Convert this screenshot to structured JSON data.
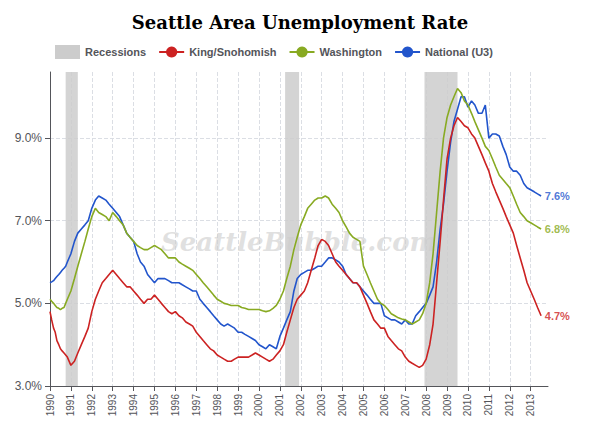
{
  "chart_data": {
    "type": "line",
    "title": "Seattle Area Unemployment Rate",
    "watermark": "SeattleBubble.com",
    "x": [
      1990.0,
      1990.08,
      1990.17,
      1990.25,
      1990.33,
      1990.42,
      1990.5,
      1990.58,
      1990.67,
      1990.75,
      1990.83,
      1991.0,
      1991.17,
      1991.33,
      1991.5,
      1991.67,
      1991.83,
      1992.0,
      1992.17,
      1992.33,
      1992.5,
      1992.67,
      1992.83,
      1993.0,
      1993.17,
      1993.33,
      1993.5,
      1993.67,
      1993.83,
      1994.0,
      1994.17,
      1994.33,
      1994.5,
      1994.67,
      1994.83,
      1995.0,
      1995.17,
      1995.33,
      1995.5,
      1995.67,
      1995.83,
      1996.0,
      1996.17,
      1996.33,
      1996.5,
      1996.67,
      1996.83,
      1997.0,
      1997.17,
      1997.33,
      1997.5,
      1997.67,
      1997.83,
      1998.0,
      1998.17,
      1998.33,
      1998.5,
      1998.67,
      1998.83,
      1999.0,
      1999.17,
      1999.33,
      1999.5,
      1999.67,
      1999.83,
      2000.0,
      2000.17,
      2000.33,
      2000.5,
      2000.67,
      2000.83,
      2001.0,
      2001.17,
      2001.33,
      2001.5,
      2001.67,
      2001.83,
      2002.0,
      2002.17,
      2002.33,
      2002.5,
      2002.67,
      2002.83,
      2003.0,
      2003.17,
      2003.33,
      2003.5,
      2003.67,
      2003.83,
      2004.0,
      2004.17,
      2004.33,
      2004.5,
      2004.67,
      2004.83,
      2005.0,
      2005.17,
      2005.33,
      2005.5,
      2005.67,
      2005.83,
      2006.0,
      2006.17,
      2006.33,
      2006.5,
      2006.67,
      2006.83,
      2007.0,
      2007.17,
      2007.33,
      2007.5,
      2007.67,
      2007.83,
      2008.0,
      2008.17,
      2008.33,
      2008.5,
      2008.67,
      2008.83,
      2009.0,
      2009.17,
      2009.33,
      2009.5,
      2009.67,
      2009.83,
      2010.0,
      2010.17,
      2010.33,
      2010.5,
      2010.67,
      2010.83,
      2011.0,
      2011.17,
      2011.33,
      2011.5,
      2011.67,
      2011.83,
      2012.0,
      2012.17,
      2012.33,
      2012.5,
      2012.67,
      2012.83,
      2013.0,
      2013.17,
      2013.33,
      2013.5
    ],
    "series": [
      {
        "name": "King/Snohomish",
        "color": "#cc2222",
        "values": [
          4.8,
          4.6,
          4.4,
          4.3,
          4.1,
          4.0,
          3.9,
          3.85,
          3.8,
          3.75,
          3.7,
          3.5,
          3.6,
          3.8,
          4.0,
          4.2,
          4.4,
          4.8,
          5.1,
          5.3,
          5.5,
          5.6,
          5.7,
          5.8,
          5.7,
          5.6,
          5.5,
          5.4,
          5.4,
          5.3,
          5.2,
          5.1,
          5.0,
          5.1,
          5.1,
          5.2,
          5.1,
          5.0,
          4.9,
          4.8,
          4.75,
          4.8,
          4.7,
          4.65,
          4.55,
          4.5,
          4.45,
          4.3,
          4.2,
          4.1,
          4.0,
          3.9,
          3.85,
          3.75,
          3.7,
          3.65,
          3.6,
          3.6,
          3.65,
          3.7,
          3.7,
          3.7,
          3.7,
          3.75,
          3.8,
          3.75,
          3.7,
          3.65,
          3.6,
          3.65,
          3.75,
          3.85,
          4.0,
          4.3,
          4.6,
          4.9,
          5.1,
          5.2,
          5.3,
          5.5,
          5.8,
          6.1,
          6.4,
          6.55,
          6.5,
          6.4,
          6.2,
          6.0,
          5.9,
          5.8,
          5.7,
          5.6,
          5.5,
          5.5,
          5.4,
          5.2,
          5.0,
          4.8,
          4.6,
          4.5,
          4.4,
          4.4,
          4.2,
          4.1,
          4.0,
          3.9,
          3.85,
          3.7,
          3.6,
          3.55,
          3.5,
          3.45,
          3.5,
          3.65,
          4.0,
          4.5,
          5.5,
          6.5,
          7.5,
          8.5,
          9.0,
          9.3,
          9.5,
          9.4,
          9.3,
          9.25,
          9.1,
          9.0,
          8.8,
          8.6,
          8.4,
          8.2,
          7.9,
          7.7,
          7.5,
          7.3,
          7.1,
          6.9,
          6.7,
          6.4,
          6.1,
          5.8,
          5.5,
          5.3,
          5.1,
          4.9,
          4.7
        ]
      },
      {
        "name": "Washington",
        "color": "#88aa22",
        "values": [
          5.1,
          5.05,
          5.0,
          4.95,
          4.9,
          4.88,
          4.85,
          4.88,
          4.9,
          5.0,
          5.1,
          5.3,
          5.6,
          5.9,
          6.2,
          6.5,
          6.8,
          7.1,
          7.3,
          7.2,
          7.15,
          7.1,
          7.0,
          7.2,
          7.1,
          7.0,
          6.9,
          6.7,
          6.6,
          6.5,
          6.4,
          6.35,
          6.3,
          6.3,
          6.35,
          6.4,
          6.35,
          6.3,
          6.2,
          6.1,
          6.1,
          6.1,
          6.0,
          5.95,
          5.9,
          5.85,
          5.8,
          5.7,
          5.6,
          5.5,
          5.4,
          5.3,
          5.2,
          5.1,
          5.05,
          5.0,
          4.98,
          4.95,
          4.95,
          4.95,
          4.9,
          4.88,
          4.85,
          4.85,
          4.85,
          4.85,
          4.82,
          4.8,
          4.82,
          4.88,
          4.95,
          5.1,
          5.3,
          5.6,
          5.9,
          6.3,
          6.6,
          6.9,
          7.1,
          7.3,
          7.4,
          7.5,
          7.55,
          7.55,
          7.6,
          7.55,
          7.4,
          7.3,
          7.2,
          7.0,
          6.85,
          6.7,
          6.6,
          6.55,
          6.5,
          5.9,
          5.7,
          5.5,
          5.3,
          5.1,
          5.0,
          4.95,
          4.85,
          4.75,
          4.7,
          4.65,
          4.62,
          4.6,
          4.55,
          4.5,
          4.55,
          4.6,
          4.75,
          5.0,
          5.5,
          6.2,
          7.2,
          8.2,
          9.0,
          9.5,
          9.8,
          10.0,
          10.2,
          10.1,
          9.9,
          9.8,
          9.6,
          9.4,
          9.2,
          9.0,
          8.8,
          8.7,
          8.5,
          8.3,
          8.1,
          8.0,
          7.9,
          7.8,
          7.6,
          7.4,
          7.2,
          7.1,
          7.0,
          6.95,
          6.9,
          6.85,
          6.8
        ]
      },
      {
        "name": "National (U3)",
        "color": "#2255cc",
        "values": [
          5.5,
          5.52,
          5.55,
          5.6,
          5.65,
          5.7,
          5.75,
          5.8,
          5.85,
          5.9,
          6.0,
          6.2,
          6.5,
          6.7,
          6.8,
          6.9,
          7.0,
          7.3,
          7.5,
          7.6,
          7.55,
          7.5,
          7.4,
          7.3,
          7.2,
          7.1,
          6.9,
          6.7,
          6.6,
          6.5,
          6.2,
          6.0,
          5.9,
          5.7,
          5.6,
          5.5,
          5.6,
          5.6,
          5.6,
          5.55,
          5.5,
          5.5,
          5.5,
          5.45,
          5.4,
          5.35,
          5.3,
          5.3,
          5.1,
          5.0,
          4.9,
          4.8,
          4.7,
          4.6,
          4.5,
          4.45,
          4.5,
          4.45,
          4.4,
          4.3,
          4.3,
          4.25,
          4.2,
          4.15,
          4.1,
          4.0,
          3.95,
          3.9,
          4.0,
          3.95,
          3.9,
          4.2,
          4.4,
          4.6,
          4.8,
          5.3,
          5.6,
          5.7,
          5.75,
          5.8,
          5.8,
          5.85,
          5.9,
          5.9,
          6.0,
          6.1,
          6.1,
          6.05,
          6.0,
          5.9,
          5.7,
          5.6,
          5.5,
          5.5,
          5.4,
          5.3,
          5.2,
          5.1,
          5.0,
          5.0,
          5.0,
          4.7,
          4.65,
          4.6,
          4.6,
          4.55,
          4.5,
          4.6,
          4.5,
          4.5,
          4.7,
          4.8,
          4.9,
          5.0,
          5.2,
          5.4,
          6.0,
          6.8,
          7.4,
          8.2,
          8.9,
          9.4,
          9.7,
          10.0,
          10.0,
          9.75,
          9.9,
          9.8,
          9.6,
          9.6,
          9.8,
          9.0,
          9.1,
          9.1,
          9.05,
          8.8,
          8.6,
          8.3,
          8.2,
          8.2,
          8.1,
          7.9,
          7.8,
          7.75,
          7.7,
          7.65,
          7.6
        ]
      }
    ],
    "recessions": {
      "name": "Recessions",
      "color": "#cccccc",
      "periods": [
        [
          1990.75,
          1991.33
        ],
        [
          2001.25,
          2001.92
        ],
        [
          2007.92,
          2009.5
        ]
      ]
    },
    "annotations": [
      {
        "text": "4.7%",
        "x": 2013.58,
        "y": 4.7,
        "color": "#cc2222"
      },
      {
        "text": "6.8%",
        "x": 2013.58,
        "y": 6.8,
        "color": "#88aa22"
      },
      {
        "text": "7.6%",
        "x": 2013.58,
        "y": 7.6,
        "color": "#2255cc"
      }
    ],
    "xlim": [
      1990.0,
      2013.83
    ],
    "ylim": [
      3.0,
      10.6
    ],
    "xticks": [
      1990,
      1991,
      1992,
      1993,
      1994,
      1995,
      1996,
      1997,
      1998,
      1999,
      2000,
      2001,
      2002,
      2003,
      2004,
      2005,
      2006,
      2007,
      2008,
      2009,
      2010,
      2011,
      2012,
      2013
    ],
    "yticks": [
      {
        "value": 3.0,
        "label": "3.0%"
      },
      {
        "value": 5.0,
        "label": "5.0%"
      },
      {
        "value": 7.0,
        "label": "7.0%"
      },
      {
        "value": 9.0,
        "label": "9.0%"
      }
    ],
    "grid": true,
    "legend": "upper left"
  }
}
